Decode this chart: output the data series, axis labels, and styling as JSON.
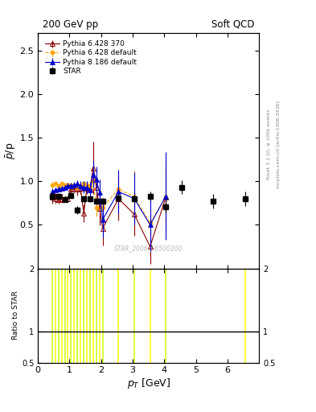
{
  "title_left": "200 GeV pp",
  "title_right": "Soft QCD",
  "ylabel_main": "$\\bar{p}$/p",
  "ylabel_ratio": "Ratio to STAR",
  "xlabel": "$p_T$ [GeV]",
  "right_label_top": "Rivet 3.1.10, ≥ 100k events",
  "right_label_bottom": "mcplots.cern.ch [arXiv:1306.3436]",
  "watermark": "STAR_2006_S6500200",
  "STAR_x": [
    0.45,
    0.65,
    0.85,
    1.05,
    1.25,
    1.45,
    1.65,
    1.85,
    2.05,
    2.55,
    3.05,
    3.55,
    4.05,
    4.55,
    5.55,
    6.55
  ],
  "STAR_y": [
    0.83,
    0.83,
    0.79,
    0.84,
    0.67,
    0.8,
    0.8,
    0.77,
    0.77,
    0.81,
    0.8,
    0.83,
    0.71,
    0.93,
    0.77,
    0.8
  ],
  "STAR_yerr": [
    0.05,
    0.03,
    0.03,
    0.03,
    0.05,
    0.04,
    0.04,
    0.04,
    0.04,
    0.05,
    0.05,
    0.05,
    0.07,
    0.08,
    0.08,
    0.08
  ],
  "Py6_370_x": [
    0.45,
    0.55,
    0.65,
    0.75,
    0.85,
    0.95,
    1.05,
    1.15,
    1.25,
    1.35,
    1.45,
    1.55,
    1.65,
    1.75,
    1.85,
    1.95,
    2.05,
    2.55,
    3.05,
    3.55,
    4.05
  ],
  "Py6_370_y": [
    0.82,
    0.8,
    0.79,
    0.8,
    0.8,
    0.8,
    0.91,
    0.91,
    0.91,
    0.92,
    0.63,
    0.92,
    0.92,
    1.15,
    0.93,
    0.69,
    0.46,
    0.8,
    0.62,
    0.25,
    0.82
  ],
  "Py6_370_yerr": [
    0.08,
    0.06,
    0.05,
    0.05,
    0.04,
    0.04,
    0.04,
    0.04,
    0.07,
    0.07,
    0.1,
    0.07,
    0.07,
    0.3,
    0.15,
    0.2,
    0.2,
    0.25,
    0.25,
    0.2,
    0.4
  ],
  "Py6_def_x": [
    0.45,
    0.55,
    0.65,
    0.75,
    0.85,
    0.95,
    1.05,
    1.15,
    1.25,
    1.35,
    1.45,
    1.55,
    1.65,
    1.75,
    1.85,
    1.95,
    2.05,
    2.55,
    3.05,
    3.55,
    4.05
  ],
  "Py6_def_y": [
    0.96,
    0.97,
    0.95,
    0.97,
    0.96,
    0.96,
    0.96,
    0.95,
    0.93,
    0.95,
    0.97,
    0.96,
    0.95,
    1.0,
    0.7,
    0.75,
    0.7,
    0.91,
    0.82,
    0.52,
    0.82
  ],
  "Py6_def_yerr": [
    0.03,
    0.02,
    0.02,
    0.02,
    0.02,
    0.02,
    0.02,
    0.02,
    0.03,
    0.03,
    0.03,
    0.03,
    0.04,
    0.05,
    0.1,
    0.1,
    0.1,
    0.2,
    0.3,
    0.15,
    0.3
  ],
  "Py8_def_x": [
    0.45,
    0.55,
    0.65,
    0.75,
    0.85,
    0.95,
    1.05,
    1.15,
    1.25,
    1.35,
    1.45,
    1.55,
    1.65,
    1.75,
    1.85,
    1.95,
    2.05,
    2.55,
    3.05,
    3.55,
    4.05
  ],
  "Py8_def_y": [
    0.88,
    0.9,
    0.91,
    0.92,
    0.93,
    0.95,
    0.95,
    0.96,
    0.97,
    0.95,
    0.93,
    0.93,
    0.9,
    1.08,
    1.02,
    0.87,
    0.56,
    0.88,
    0.8,
    0.5,
    0.83
  ],
  "Py8_def_yerr": [
    0.04,
    0.03,
    0.03,
    0.03,
    0.03,
    0.03,
    0.03,
    0.03,
    0.04,
    0.05,
    0.07,
    0.07,
    0.08,
    0.15,
    0.15,
    0.15,
    0.2,
    0.25,
    0.3,
    0.3,
    0.5
  ],
  "ratio_lines_x": [
    0.45,
    0.55,
    0.65,
    0.75,
    0.85,
    0.95,
    1.05,
    1.15,
    1.25,
    1.35,
    1.45,
    1.55,
    1.65,
    1.75,
    1.85,
    1.95,
    2.05,
    2.55,
    3.05,
    3.55,
    4.05,
    6.55
  ],
  "ratio_ymin": 0.5,
  "ratio_ymax": 2.0,
  "ylim_main": [
    0.0,
    2.7
  ],
  "xlim": [
    0.0,
    7.0
  ],
  "xticks": [
    0,
    1,
    2,
    3,
    4,
    5,
    6
  ],
  "yticks_main": [
    0.5,
    1.0,
    1.5,
    2.0,
    2.5
  ],
  "star_color": "#000000",
  "py6_370_color": "#8B0000",
  "py6_def_color": "#FFA500",
  "py8_def_color": "#0000CD",
  "bg_color": "#ffffff"
}
